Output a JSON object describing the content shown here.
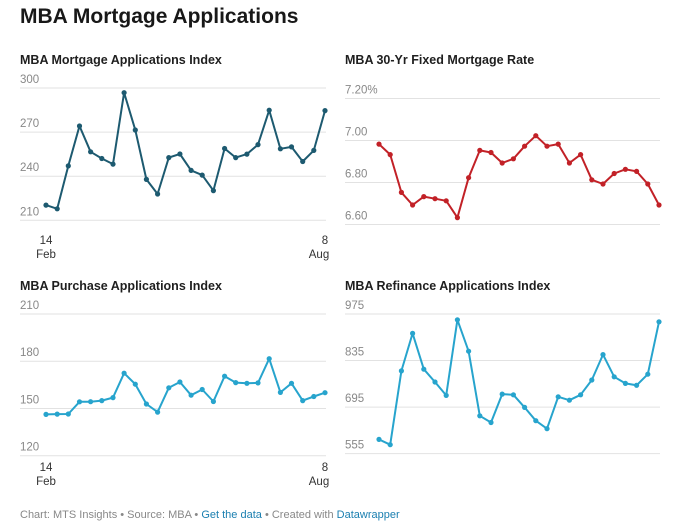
{
  "page": {
    "title": "MBA Mortgage Applications"
  },
  "footer": {
    "chart_by": "Chart: MTS Insights",
    "sep1": " • ",
    "source": "Source: MBA",
    "sep2": " • ",
    "get_data": "Get the data",
    "sep3": " • Created with ",
    "made_with": "Datawrapper"
  },
  "chart_data": [
    {
      "type": "line",
      "title": "MBA Mortgage Applications Index",
      "color": "#1d5a70",
      "ylim": [
        200,
        300
      ],
      "yticks": [
        "300",
        "270",
        "240",
        "210"
      ],
      "ytick_values": [
        300,
        270,
        240,
        210
      ],
      "xticks": [
        {
          "index": 0,
          "day": "14",
          "month": "Feb"
        },
        {
          "index": 25,
          "day": "8",
          "month": "Aug"
        }
      ],
      "values": [
        214.2,
        211.7,
        240.9,
        268.0,
        250.5,
        245.9,
        242.1,
        290.7,
        265.3,
        231.7,
        221.8,
        246.5,
        249.0,
        237.8,
        234.6,
        224.1,
        252.7,
        246.5,
        248.9,
        255.4,
        278.8,
        252.5,
        253.8,
        243.9,
        251.4,
        278.5
      ]
    },
    {
      "type": "line",
      "title": "MBA 30-Yr Fixed Mortgage Rate",
      "color": "#c22127",
      "ylim": [
        6.55,
        7.25
      ],
      "yticks": [
        "7.20%",
        "7.00",
        "6.80",
        "6.60"
      ],
      "ytick_values": [
        7.2,
        7.0,
        6.8,
        6.6
      ],
      "xticks": [],
      "values": [
        6.94,
        6.89,
        6.71,
        6.65,
        6.69,
        6.68,
        6.67,
        6.59,
        6.78,
        6.91,
        6.9,
        6.85,
        6.87,
        6.93,
        6.98,
        6.93,
        6.94,
        6.85,
        6.89,
        6.77,
        6.75,
        6.8,
        6.82,
        6.81,
        6.75,
        6.65
      ]
    },
    {
      "type": "line",
      "title": "MBA Purchase Applications Index",
      "color": "#27a4cd",
      "ylim": [
        116,
        210
      ],
      "yticks": [
        "210",
        "180",
        "150",
        "120"
      ],
      "ytick_values": [
        210,
        180,
        150,
        120
      ],
      "xticks": [
        {
          "index": 0,
          "day": "14",
          "month": "Feb"
        },
        {
          "index": 25,
          "day": "8",
          "month": "Aug"
        }
      ],
      "values": [
        140.5,
        140.7,
        140.8,
        148.5,
        148.6,
        149.3,
        151.2,
        166.7,
        159.7,
        147.1,
        142.0,
        157.4,
        161.1,
        152.7,
        156.3,
        148.7,
        164.8,
        160.7,
        160.3,
        160.5,
        175.9,
        154.5,
        160.3,
        149.3,
        151.9,
        154.3
      ]
    },
    {
      "type": "line",
      "title": "MBA Refinance Applications Index",
      "color": "#27a4cd",
      "ylim": [
        530,
        975
      ],
      "yticks": [
        "975",
        "835",
        "695",
        "555"
      ],
      "ytick_values": [
        975,
        835,
        695,
        555
      ],
      "xticks": [],
      "values": [
        570.8,
        554.9,
        776.8,
        889.6,
        782.1,
        743.6,
        703.3,
        930.6,
        836.1,
        641.8,
        621.8,
        707.0,
        705.0,
        667.2,
        627.0,
        603.1,
        699.0,
        688.7,
        705.0,
        749.4,
        825.9,
        759.1,
        739.2,
        733.6,
        766.9,
        924.6
      ]
    }
  ]
}
